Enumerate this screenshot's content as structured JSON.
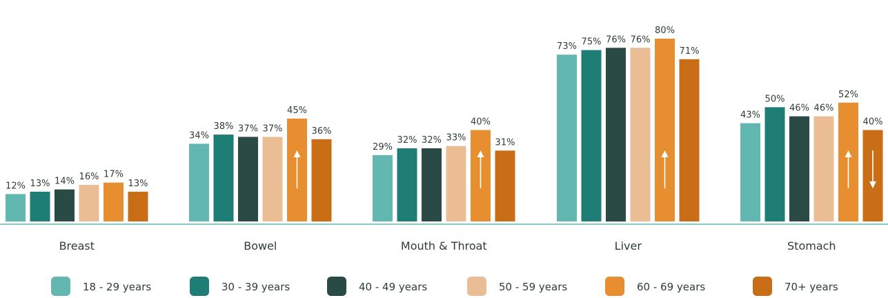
{
  "chart_data": {
    "type": "bar",
    "categories": [
      "Breast",
      "Bowel",
      "Mouth & Throat",
      "Liver",
      "Stomach"
    ],
    "series": [
      {
        "name": "18 - 29 years",
        "color": "#62b8b0",
        "values": [
          12,
          34,
          29,
          73,
          43
        ]
      },
      {
        "name": "30 - 39 years",
        "color": "#1e7d74",
        "values": [
          13,
          38,
          32,
          75,
          50
        ]
      },
      {
        "name": "40 - 49 years",
        "color": "#2a4a45",
        "values": [
          14,
          37,
          32,
          76,
          46
        ]
      },
      {
        "name": "50 - 59 years",
        "color": "#ebbd95",
        "values": [
          16,
          37,
          33,
          76,
          46
        ]
      },
      {
        "name": "60 - 69 years",
        "color": "#e78e30",
        "values": [
          17,
          45,
          40,
          80,
          52
        ]
      },
      {
        "name": "70+ years",
        "color": "#c96d17",
        "values": [
          13,
          36,
          31,
          71,
          40
        ]
      }
    ],
    "value_suffix": "%",
    "ylim": [
      0,
      80
    ],
    "annotations": [
      {
        "category": "Bowel",
        "series": "60 - 69 years",
        "arrow": "up"
      },
      {
        "category": "Mouth & Throat",
        "series": "60 - 69 years",
        "arrow": "up"
      },
      {
        "category": "Liver",
        "series": "60 - 69 years",
        "arrow": "up"
      },
      {
        "category": "Stomach",
        "series": "60 - 69 years",
        "arrow": "up"
      },
      {
        "category": "Stomach",
        "series": "70+ years",
        "arrow": "down"
      }
    ],
    "legend_position": "bottom",
    "grid": false,
    "axis_color": "#62b8b0"
  }
}
